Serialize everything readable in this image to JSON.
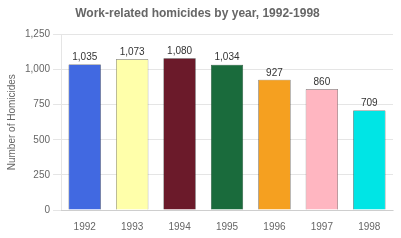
{
  "chart_data": {
    "type": "bar",
    "title": "Work-related homicides by year, 1992-1998",
    "categories": [
      "1992",
      "1993",
      "1994",
      "1995",
      "1996",
      "1997",
      "1998"
    ],
    "values": [
      1035,
      1073,
      1080,
      1034,
      927,
      860,
      709
    ],
    "value_labels": [
      "1,035",
      "1,073",
      "1,080",
      "1,034",
      "927",
      "860",
      "709"
    ],
    "data_labels": true,
    "colors": [
      "#4169E1",
      "#FFFFAA",
      "#6B1A2A",
      "#1A6B3C",
      "#F5A020",
      "#FFB6C1",
      "#00E5E5"
    ],
    "ylabel": "Number of Homicides",
    "ylim": [
      0,
      1250
    ],
    "yticks": [
      0,
      250,
      500,
      750,
      {
        "value": 1000,
        "label": "1,000"
      },
      {
        "value": 1250,
        "label": "1,250"
      }
    ],
    "grid": true
  }
}
